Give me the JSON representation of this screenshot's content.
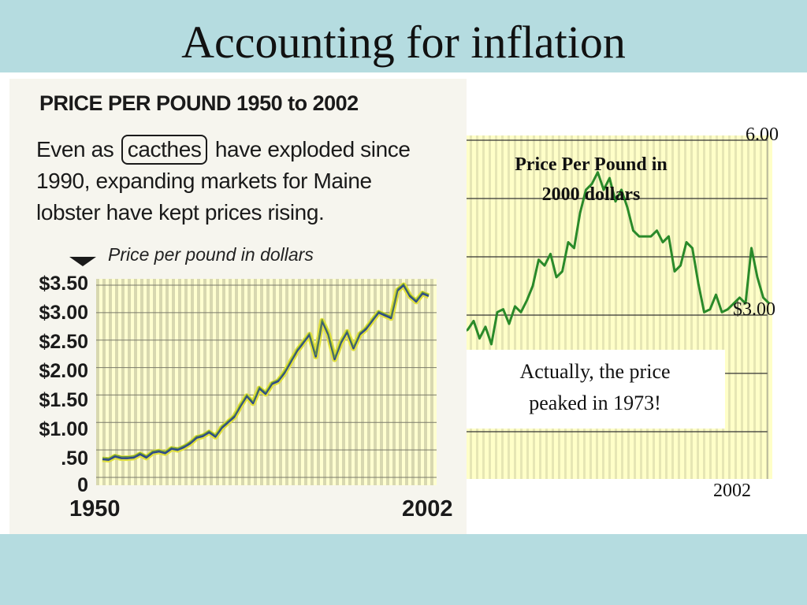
{
  "slide": {
    "title": "Accounting for inflation"
  },
  "scanned_chart": {
    "heading": "PRICE PER POUND 1950 to 2002",
    "caption_lines": [
      {
        "before": "Even as ",
        "boxed": "cacthes",
        "after": " have exploded since"
      },
      {
        "text": "1990, expanding markets for Maine"
      },
      {
        "text": "lobster have kept prices rising."
      }
    ],
    "subtitle": "Price per pound in dollars"
  },
  "inflation_chart": {
    "title_lines": [
      "Price Per Pound in",
      "2000 dollars"
    ],
    "note_lines": [
      "Actually, the price",
      "peaked in 1973!"
    ]
  },
  "colors": {
    "slide_bg": "#b5dce0",
    "plot_bg": "#ffffc8",
    "plot_stripe": "#e6e6b4",
    "line_green": "#2a8a2a",
    "line_yellow_outline": "#e0e040",
    "scan_line_blue": "#2d4a8a"
  },
  "chart_data": [
    {
      "type": "line",
      "title": "PRICE PER POUND 1950 to 2002",
      "ylabel": "Price per pound in dollars",
      "xlim": [
        1950,
        2002
      ],
      "ylim": [
        0,
        3.5
      ],
      "x_tick_labels": [
        "1950",
        "2002"
      ],
      "y_ticks": [
        0,
        0.5,
        1.0,
        1.5,
        2.0,
        2.5,
        3.0,
        3.5
      ],
      "y_tick_labels": [
        "0",
        ".50",
        "$1.00",
        "$1.50",
        "$2.00",
        "$2.50",
        "$3.00",
        "$3.50"
      ],
      "grid": true,
      "x": [
        1950,
        1951,
        1952,
        1953,
        1954,
        1955,
        1956,
        1957,
        1958,
        1959,
        1960,
        1961,
        1962,
        1963,
        1964,
        1965,
        1966,
        1967,
        1968,
        1969,
        1970,
        1971,
        1972,
        1973,
        1974,
        1975,
        1976,
        1977,
        1978,
        1979,
        1980,
        1981,
        1982,
        1983,
        1984,
        1985,
        1986,
        1987,
        1988,
        1989,
        1990,
        1991,
        1992,
        1993,
        1994,
        1995,
        1996,
        1997,
        1998,
        1999,
        2000,
        2001,
        2002
      ],
      "values": [
        0.33,
        0.32,
        0.38,
        0.35,
        0.35,
        0.36,
        0.42,
        0.36,
        0.45,
        0.47,
        0.44,
        0.52,
        0.5,
        0.55,
        0.62,
        0.72,
        0.75,
        0.82,
        0.74,
        0.9,
        1.0,
        1.1,
        1.3,
        1.48,
        1.35,
        1.62,
        1.52,
        1.7,
        1.75,
        1.9,
        2.1,
        2.3,
        2.45,
        2.6,
        2.2,
        2.85,
        2.6,
        2.15,
        2.45,
        2.65,
        2.35,
        2.6,
        2.7,
        2.85,
        3.0,
        2.95,
        2.9,
        3.4,
        3.5,
        3.3,
        3.2,
        3.35,
        3.3
      ]
    },
    {
      "type": "line",
      "title": "Price Per Pound in 2000 dollars",
      "xlim": [
        1950,
        2002
      ],
      "ylim": [
        1.0,
        6.0
      ],
      "x_tick_labels": [
        "2002"
      ],
      "y_ticks": [
        3.0,
        6.0
      ],
      "y_tick_labels": [
        "$3.00",
        "6.00"
      ],
      "grid": true,
      "annotation": "Actually, the price peaked in 1973!",
      "x": [
        1950,
        1951,
        1952,
        1953,
        1954,
        1955,
        1956,
        1957,
        1958,
        1959,
        1960,
        1961,
        1962,
        1963,
        1964,
        1965,
        1966,
        1967,
        1968,
        1969,
        1970,
        1971,
        1972,
        1973,
        1974,
        1975,
        1976,
        1977,
        1978,
        1979,
        1980,
        1981,
        1982,
        1983,
        1984,
        1985,
        1986,
        1987,
        1988,
        1989,
        1990,
        1991,
        1992,
        1993,
        1994,
        1995,
        1996,
        1997,
        1998,
        1999,
        2000,
        2001,
        2002
      ],
      "values": [
        2.7,
        2.75,
        2.9,
        2.6,
        2.8,
        2.5,
        3.05,
        3.1,
        2.85,
        3.15,
        3.05,
        3.25,
        3.5,
        3.95,
        3.85,
        4.05,
        3.65,
        3.75,
        4.25,
        4.15,
        4.75,
        5.15,
        5.25,
        5.45,
        5.15,
        5.35,
        4.95,
        5.15,
        4.85,
        4.45,
        4.35,
        4.35,
        4.35,
        4.45,
        4.25,
        4.35,
        3.75,
        3.85,
        4.25,
        4.15,
        3.55,
        3.05,
        3.1,
        3.35,
        3.05,
        3.1,
        3.2,
        3.3,
        3.2,
        4.15,
        3.65,
        3.3,
        3.2
      ]
    }
  ]
}
